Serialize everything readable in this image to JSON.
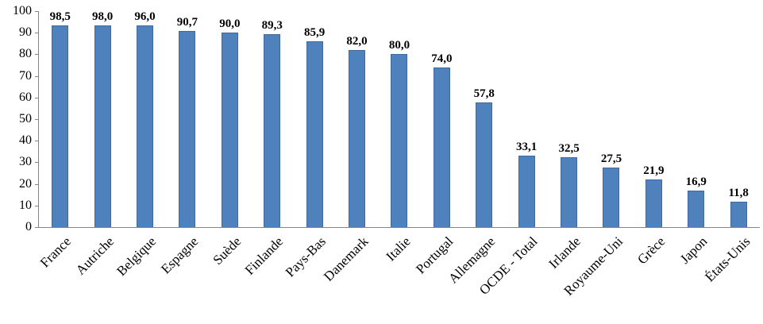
{
  "chart_data": {
    "type": "bar",
    "title": "",
    "xlabel": "",
    "ylabel": "",
    "categories": [
      "France",
      "Autriche",
      "Belgique",
      "Espagne",
      "Suède",
      "Finlande",
      "Pays-Bas",
      "Danemark",
      "Italie",
      "Portugal",
      "Allemagne",
      "OCDE - Total",
      "Irlande",
      "Royaume-Uni",
      "Grèce",
      "Japon",
      "États-Unis"
    ],
    "values": [
      98.5,
      98.0,
      96.0,
      90.7,
      90.0,
      89.3,
      85.9,
      82.0,
      80.0,
      74.0,
      57.8,
      33.1,
      32.5,
      27.5,
      21.9,
      16.9,
      11.8
    ],
    "value_labels": [
      "98,5",
      "98,0",
      "96,0",
      "90,7",
      "90,0",
      "89,3",
      "85,9",
      "82,0",
      "80,0",
      "74,0",
      "57,8",
      "33,1",
      "32,5",
      "27,5",
      "21,9",
      "16,9",
      "11,8"
    ],
    "ylim": [
      0,
      100
    ],
    "yticks": [
      0,
      10,
      20,
      30,
      40,
      50,
      60,
      70,
      80,
      90,
      100
    ],
    "grid": false,
    "legend": "none",
    "bar_color": "#4F81BD",
    "axis_color": "#868686"
  }
}
